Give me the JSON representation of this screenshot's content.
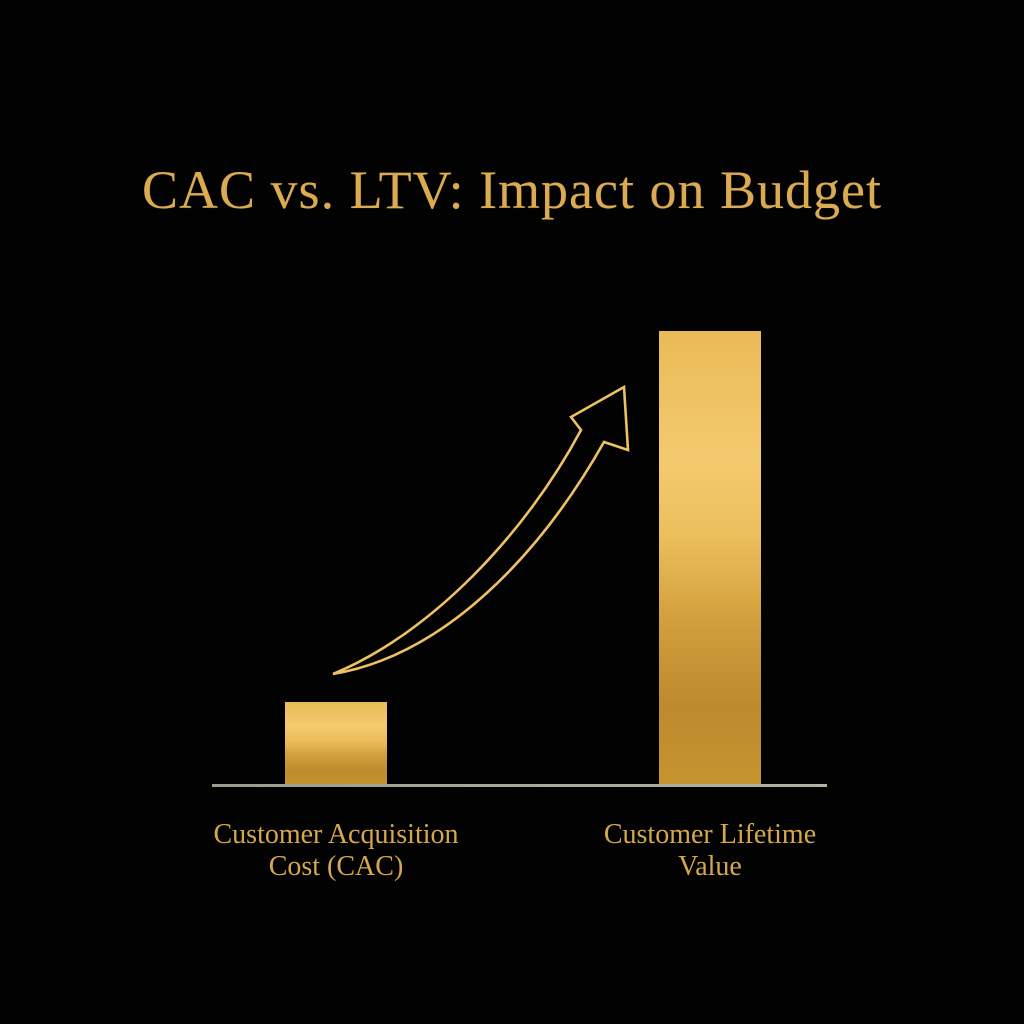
{
  "title": "CAC vs. LTV: Impact on Budget",
  "colors": {
    "background": "#000000",
    "title_gold": "#dbab51",
    "label_gold": "#d6a84e",
    "arrow_gold": "#eec162",
    "baseline_gray": "#aaa79c",
    "bar_gold_light": "#f3ca6e",
    "bar_gold_dark": "#bd8a2d"
  },
  "chart_data": {
    "type": "bar",
    "title": "CAC vs. LTV: Impact on Budget",
    "categories": [
      "Customer Acquisition Cost (CAC)",
      "Customer Lifetime Value"
    ],
    "values_relative": [
      1,
      5.4
    ],
    "xlabel": "",
    "ylabel": "",
    "ylim": [
      0,
      5.4
    ],
    "grid": false,
    "legend_position": "none",
    "axis_ticks": "none (conceptual chart, no numeric scale shown)",
    "annotations": [
      "hollow curved gold arrow rising from the CAC bar toward the LTV bar"
    ]
  },
  "bars": [
    {
      "id": "cac",
      "label_line1": "Customer Acquisition",
      "label_line2": "Cost (CAC)",
      "relative_value": 1
    },
    {
      "id": "ltv",
      "label_line1": "Customer Lifetime",
      "label_line2": "Value",
      "relative_value": 5.4
    }
  ]
}
